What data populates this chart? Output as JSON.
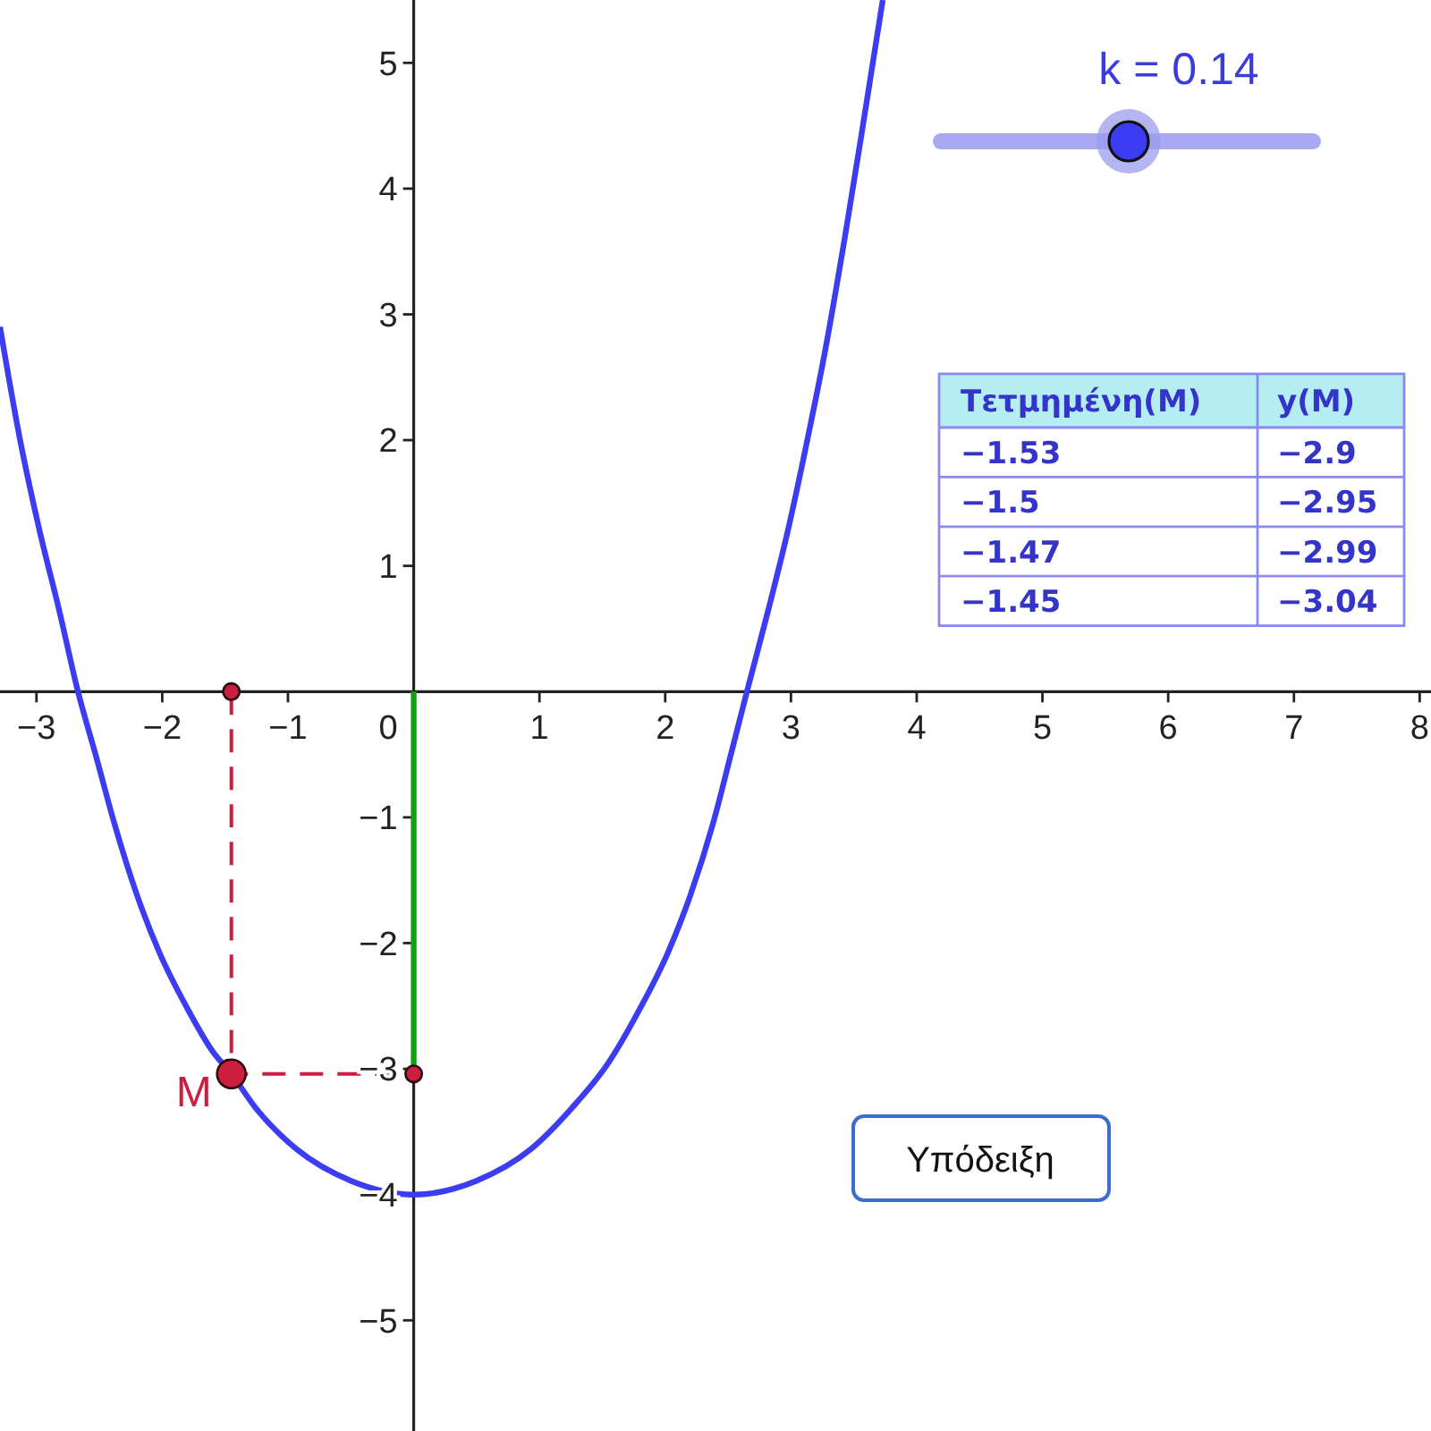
{
  "chart_data": {
    "type": "line",
    "xlim": [
      -3.29,
      8.09
    ],
    "ylim": [
      -5.88,
      5.5
    ],
    "xticks": [
      {
        "value": -3,
        "label": "−3"
      },
      {
        "value": -2,
        "label": "−2"
      },
      {
        "value": -1,
        "label": "−1"
      },
      0,
      1,
      2,
      3,
      4,
      5,
      6,
      7,
      8
    ],
    "yticks": [
      {
        "value": -5,
        "label": "−5"
      },
      {
        "value": -4,
        "label": "−4"
      },
      {
        "value": -3,
        "label": "−3"
      },
      {
        "value": -2,
        "label": "−2"
      },
      {
        "value": -1,
        "label": "−1"
      },
      1,
      2,
      3,
      4,
      5
    ],
    "series": [
      {
        "color": "#3c3cf0",
        "x": [
          -3.29,
          -3.13,
          -2.98,
          -2.82,
          -2.67,
          -2.53,
          -2.38,
          -2.2,
          -2.02,
          -1.8,
          -1.6,
          -1.45,
          -1.25,
          -0.93,
          -0.5,
          0,
          0.5,
          0.93,
          1.25,
          1.55,
          1.8,
          2.02,
          2.2,
          2.38,
          2.53,
          2.65,
          2.82,
          2.98,
          3.13,
          3.27,
          3.43,
          3.58,
          3.73
        ],
        "values": [
          2.9,
          2.0,
          1.3,
          0.65,
          0,
          -0.5,
          -1.05,
          -1.62,
          -2.08,
          -2.52,
          -2.86,
          -3.04,
          -3.32,
          -3.64,
          -3.89,
          -4,
          -3.89,
          -3.64,
          -3.32,
          -2.95,
          -2.52,
          -2.08,
          -1.62,
          -1.05,
          -0.47,
          0,
          0.65,
          1.3,
          2.0,
          2.7,
          3.62,
          4.55,
          5.5
        ]
      },
      {
        "color": "#13a013",
        "x": [
          0,
          0
        ],
        "values": [
          0,
          -3.04
        ]
      },
      {
        "color": "#cc1f3f",
        "line_style": "dashed",
        "x": [
          -1.45,
          -1.45,
          0
        ],
        "values": [
          0,
          -3.04,
          -3.04
        ]
      },
      {
        "type": "scatter",
        "color": "#cc1f3f",
        "marker": "circle",
        "x": [
          -1.45,
          0
        ],
        "values": [
          0,
          -3.04
        ]
      },
      {
        "type": "scatter",
        "name": "M",
        "color": "#cc1f3f",
        "marker": "circle",
        "x": [
          -1.45
        ],
        "values": [
          -3.04
        ]
      }
    ],
    "annotations": [
      "k = 0.14",
      "Τετμημένη(M)",
      "y(M)",
      "−1.53",
      "−2.9",
      "−1.5",
      "−2.95",
      "−1.47",
      "−2.99",
      "−1.45",
      "−3.04",
      "Υπόδειξη"
    ]
  }
}
